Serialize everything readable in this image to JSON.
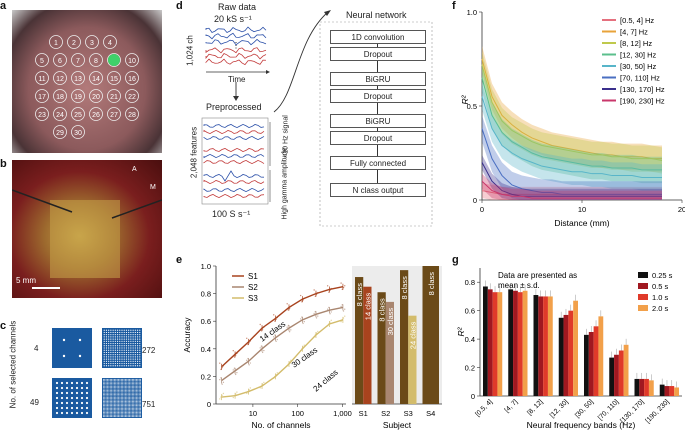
{
  "panel_labels": [
    "a",
    "b",
    "c",
    "d",
    "e",
    "f",
    "g"
  ],
  "panel_a": {
    "electrodes": [
      "1",
      "2",
      "3",
      "4",
      "5",
      "6",
      "7",
      "8",
      "9",
      "10",
      "11",
      "12",
      "13",
      "14",
      "15",
      "16",
      "17",
      "18",
      "19",
      "20",
      "21",
      "22",
      "23",
      "24",
      "25",
      "26",
      "27",
      "28",
      "29",
      "30"
    ]
  },
  "panel_b": {
    "scale_label": "5 mm",
    "orientation_labels": [
      "A",
      "M"
    ]
  },
  "panel_c": {
    "ylabel": "No. of selected channels",
    "counts": [
      "4",
      "272",
      "49",
      "751"
    ]
  },
  "panel_d": {
    "raw_title": "Raw data",
    "raw_rate": "20 kS s⁻¹",
    "channels": "1,024 ch",
    "time_label": "Time",
    "preprocessed_label": "Preprocessed",
    "features": "2,048 features",
    "rate_out": "100 S s⁻¹",
    "signal_low": "<10 Hz signal",
    "signal_high": "High gamma amplitude",
    "nn_title": "Neural network",
    "layers": [
      "1D convolution",
      "Dropout",
      "BiGRU",
      "Dropout",
      "BiGRU",
      "Dropout",
      "Fully connected",
      "N class output"
    ]
  },
  "chart_data": [
    {
      "panel": "e-left",
      "type": "line",
      "xlabel": "No. of channels",
      "ylabel": "Accuracy",
      "x_scale": "log",
      "xticks": [
        "10",
        "100",
        "1,000"
      ],
      "yticks": [
        "0",
        "0.2",
        "0.4",
        "0.6",
        "0.8",
        "1.0"
      ],
      "ylim": [
        0,
        1.0
      ],
      "x": [
        2,
        4,
        8,
        16,
        32,
        64,
        128,
        256,
        512,
        1024
      ],
      "series": [
        {
          "name": "S1",
          "color": "#a8431e",
          "values": [
            0.27,
            0.36,
            0.45,
            0.55,
            0.62,
            0.7,
            0.76,
            0.8,
            0.83,
            0.85
          ]
        },
        {
          "name": "S2",
          "color": "#a98670",
          "values": [
            0.17,
            0.24,
            0.31,
            0.4,
            0.48,
            0.55,
            0.61,
            0.65,
            0.68,
            0.7
          ]
        },
        {
          "name": "S3",
          "color": "#d3bc6b",
          "values": [
            0.05,
            0.06,
            0.09,
            0.13,
            0.2,
            0.29,
            0.4,
            0.5,
            0.58,
            0.61
          ]
        }
      ],
      "annotations": [
        "14 class",
        "30 class",
        "24 class"
      ]
    },
    {
      "panel": "e-right",
      "type": "bar",
      "xlabel": "Subject",
      "categories": [
        "S1",
        "S2",
        "S3",
        "S4"
      ],
      "series": [
        {
          "values": [
            0.92,
            0.81,
            0.97,
            1.0
          ],
          "inner_label": "8 class",
          "color": "#6b4a18"
        },
        {
          "values": [
            0.85,
            0.74,
            0.64,
            null
          ],
          "inner_labels": [
            "14 class",
            "30 class",
            "24 class",
            ""
          ],
          "colors": [
            "#a8431e",
            "#a98670",
            "#d3bc6b"
          ]
        }
      ],
      "ylim": [
        0,
        1.0
      ]
    },
    {
      "panel": "f",
      "type": "line",
      "xlabel": "Distance (mm)",
      "ylabel": "R²",
      "xticks": [
        "0",
        "10",
        "20"
      ],
      "yticks": [
        "0",
        "0.5",
        "1.0"
      ],
      "xlim": [
        0,
        20
      ],
      "ylim": [
        0,
        1.0
      ],
      "x": [
        0,
        1,
        2,
        3,
        4,
        5,
        6,
        7,
        8,
        9,
        10,
        11,
        12,
        13,
        14,
        15,
        16,
        17,
        18
      ],
      "series": [
        {
          "name": "[0.5, 4] Hz",
          "color": "#e5707e",
          "values": [
            0.05,
            0.04,
            0.03,
            0.03,
            0.03,
            0.03,
            0.03,
            0.03,
            0.03,
            0.03,
            0.03,
            0.03,
            0.03,
            0.03,
            0.03,
            0.03,
            0.03,
            0.03,
            0.03
          ]
        },
        {
          "name": "[4, 7] Hz",
          "color": "#e8a33a",
          "values": [
            0.75,
            0.55,
            0.45,
            0.4,
            0.36,
            0.33,
            0.31,
            0.29,
            0.28,
            0.27,
            0.26,
            0.25,
            0.24,
            0.24,
            0.23,
            0.23,
            0.23,
            0.22,
            0.22
          ]
        },
        {
          "name": "[8, 12] Hz",
          "color": "#bfc94c",
          "values": [
            0.72,
            0.52,
            0.42,
            0.37,
            0.34,
            0.31,
            0.29,
            0.28,
            0.27,
            0.26,
            0.25,
            0.24,
            0.24,
            0.23,
            0.23,
            0.22,
            0.22,
            0.22,
            0.21
          ]
        },
        {
          "name": "[12, 30] Hz",
          "color": "#5bbf8c",
          "values": [
            0.65,
            0.45,
            0.36,
            0.31,
            0.28,
            0.25,
            0.23,
            0.22,
            0.21,
            0.2,
            0.19,
            0.18,
            0.18,
            0.17,
            0.17,
            0.17,
            0.16,
            0.16,
            0.16
          ]
        },
        {
          "name": "[30, 50] Hz",
          "color": "#58b5c9",
          "values": [
            0.55,
            0.38,
            0.29,
            0.25,
            0.22,
            0.2,
            0.18,
            0.17,
            0.16,
            0.15,
            0.15,
            0.14,
            0.14,
            0.13,
            0.13,
            0.13,
            0.12,
            0.12,
            0.12
          ]
        },
        {
          "name": "[70, 110] Hz",
          "color": "#4a6fc2",
          "values": [
            0.38,
            0.22,
            0.13,
            0.08,
            0.06,
            0.05,
            0.04,
            0.04,
            0.03,
            0.03,
            0.03,
            0.03,
            0.03,
            0.03,
            0.03,
            0.03,
            0.03,
            0.03,
            0.03
          ]
        },
        {
          "name": "[130, 170] Hz",
          "color": "#3a2f8c",
          "values": [
            0.2,
            0.1,
            0.05,
            0.03,
            0.02,
            0.02,
            0.02,
            0.02,
            0.02,
            0.02,
            0.02,
            0.02,
            0.02,
            0.02,
            0.02,
            0.02,
            0.02,
            0.02,
            0.02
          ]
        },
        {
          "name": "[190, 230] Hz",
          "color": "#c9376b",
          "values": [
            0.1,
            0.05,
            0.03,
            0.02,
            0.02,
            0.01,
            0.01,
            0.01,
            0.01,
            0.01,
            0.01,
            0.01,
            0.01,
            0.01,
            0.01,
            0.01,
            0.01,
            0.01,
            0.01
          ]
        }
      ],
      "legend": "top-right"
    },
    {
      "panel": "g",
      "type": "bar",
      "xlabel": "Neural frequency bands (Hz)",
      "ylabel": "R²",
      "annotation": "Data are presented as mean ± s.d.",
      "yticks": [
        "0",
        "0.2",
        "0.4",
        "0.6",
        "0.8"
      ],
      "ylim": [
        0,
        0.9
      ],
      "categories": [
        "[0.5, 4]",
        "[4, 7]",
        "[8, 12]",
        "[12, 30]",
        "[30, 50]",
        "[70, 110]",
        "[130, 170]",
        "[190, 230]"
      ],
      "series": [
        {
          "name": "0.25 s",
          "color": "#111111",
          "values": [
            0.77,
            0.75,
            0.71,
            0.55,
            0.43,
            0.27,
            0.12,
            0.08
          ]
        },
        {
          "name": "0.5 s",
          "color": "#a01820",
          "values": [
            0.75,
            0.74,
            0.7,
            0.57,
            0.45,
            0.29,
            0.12,
            0.07
          ]
        },
        {
          "name": "1.0 s",
          "color": "#e03a2a",
          "values": [
            0.73,
            0.73,
            0.7,
            0.6,
            0.49,
            0.32,
            0.12,
            0.07
          ]
        },
        {
          "name": "2.0 s",
          "color": "#f2a04a",
          "values": [
            0.73,
            0.74,
            0.7,
            0.67,
            0.56,
            0.36,
            0.11,
            0.06
          ]
        }
      ],
      "legend": "top-right"
    }
  ]
}
